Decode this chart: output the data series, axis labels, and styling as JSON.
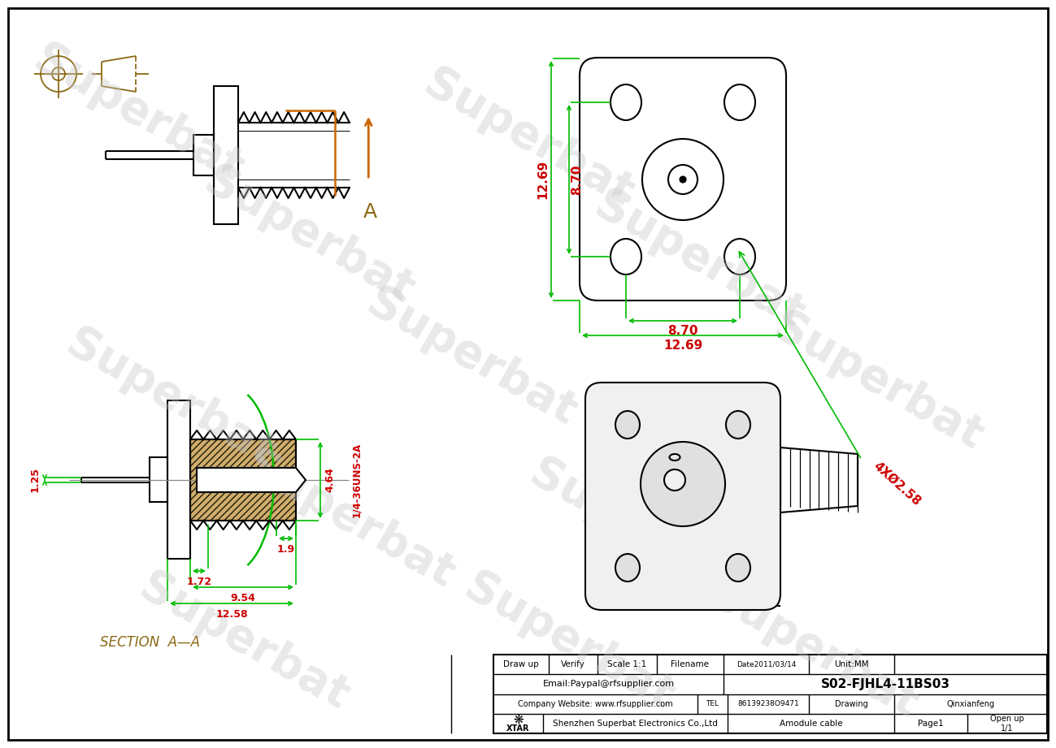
{
  "bg_color": "#FFFFFF",
  "dim_color": "#00BB00",
  "red_color": "#CC0000",
  "brown_color": "#8B6914",
  "orange_color": "#CC6600",
  "black_color": "#000000",
  "watermark_text": "Superbat",
  "section_label": "SECTION  A—A",
  "footer": {
    "draw_up": "Draw up",
    "verify": "Verify",
    "scale": "Scale 1:1",
    "filename": "Filename",
    "date": "Date2011/03/14",
    "unit": "Unit:MM",
    "email": "Email:Paypal@rfsupplier.com",
    "doc_id": "S02-FJHL4-11BS03",
    "company_website": "Company Website: www.rfsupplier.com",
    "tel": "TEL 86139238O9471",
    "drawing": "Drawing",
    "person": "Qinxianfeng",
    "company": "Shenzhen Superbat Electronics Co.,Ltd",
    "module": "Amodule cable",
    "page": "Page1",
    "open_up": "Open up\n1/1"
  },
  "dims_top": {
    "height_left": "12.69",
    "height_inner": "8.70",
    "width_inner": "8.70",
    "width_outer": "12.69",
    "hole_label": "4XØ2.58"
  },
  "dims_bottom": {
    "pin_dia": "1.25",
    "thread_len": "4.64",
    "inner_len": "1.9",
    "len1": "1.72",
    "len2": "9.54",
    "len3": "12.58",
    "thread_label": "1/4-36UNS-2A"
  }
}
